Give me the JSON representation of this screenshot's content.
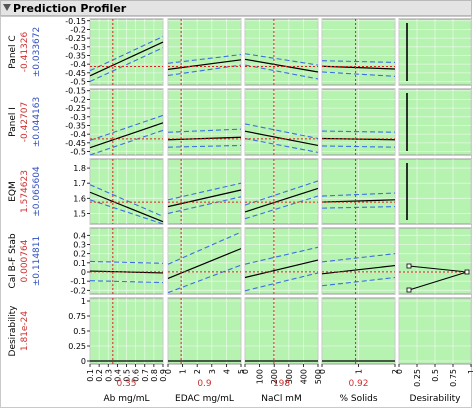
{
  "window": {
    "title": "Prediction Profiler"
  },
  "colors": {
    "panel_bg": "#b6f2b0",
    "grid_line": "#ffffff",
    "fit_line": "#000000",
    "ci_line": "#3b6fe0",
    "crosshair": "#e02020",
    "value_red": "#d03030",
    "value_blue": "#3050c0",
    "xlabel": "#000000"
  },
  "chart_data": {
    "type": "line",
    "factors": [
      {
        "name": "Ab mg/mL",
        "current": "0.35",
        "current_x": 0.35,
        "range": [
          0.1,
          0.9
        ],
        "ticks": [
          0.1,
          0.2,
          0.3,
          0.4,
          0.5,
          0.6,
          0.7,
          0.8,
          0.9
        ],
        "tick_labels": [
          "0.1",
          "0.2",
          "0.3",
          "0.4",
          "0.5",
          "0.6",
          "0.7",
          "0.8",
          "0.9"
        ]
      },
      {
        "name": "EDAC mg/mL",
        "current": "0.9",
        "current_x": 0.9,
        "range": [
          0,
          5
        ],
        "ticks": [
          0,
          1,
          2,
          3,
          4,
          5
        ],
        "tick_labels": [
          "0",
          "1",
          "2",
          "3",
          "4",
          "5"
        ]
      },
      {
        "name": "NaCl mM",
        "current": "198",
        "current_x": 198,
        "range": [
          0,
          500
        ],
        "ticks": [
          0,
          100,
          200,
          300,
          400,
          500
        ],
        "tick_labels": [
          "0",
          "100",
          "200",
          "300",
          "400",
          "500"
        ]
      },
      {
        "name": "% Solids",
        "current": "0.92",
        "current_x": 0.92,
        "range": [
          0,
          2
        ],
        "ticks": [
          0,
          1,
          2
        ],
        "tick_labels": [
          "0",
          "1",
          "2"
        ]
      },
      {
        "name": "Desirability",
        "current": "",
        "range": [
          0,
          1
        ],
        "ticks": [
          0,
          0.25,
          0.5,
          0.75,
          1
        ],
        "tick_labels": [
          "0",
          "0.25",
          "0.5",
          "0.75",
          "1"
        ]
      }
    ],
    "responses": [
      {
        "name": "Panel C",
        "value": "-0.41326",
        "ci": "±0.033672",
        "ylim": [
          -0.52,
          -0.14
        ],
        "current_y": -0.41326,
        "ticks": [
          -0.15,
          -0.2,
          -0.25,
          -0.3,
          -0.35,
          -0.4,
          -0.45,
          -0.5
        ],
        "tick_labels": [
          "-0.15",
          "-0.2",
          "-0.25",
          "-0.3",
          "-0.35",
          "-0.4",
          "-0.45",
          "-0.5"
        ],
        "traces": [
          {
            "fit": [
              -0.467,
              -0.273
            ],
            "lo": [
              -0.5,
              -0.305
            ],
            "hi": [
              -0.437,
              -0.241
            ]
          },
          {
            "fit": [
              -0.43,
              -0.375
            ],
            "lo": [
              -0.465,
              -0.405
            ],
            "hi": [
              -0.395,
              -0.345
            ]
          },
          {
            "fit": [
              -0.372,
              -0.445
            ],
            "lo": [
              -0.405,
              -0.485
            ],
            "hi": [
              -0.34,
              -0.405
            ]
          },
          {
            "fit": [
              -0.412,
              -0.428
            ],
            "lo": [
              -0.445,
              -0.47
            ],
            "hi": [
              -0.38,
              -0.39
            ]
          }
        ],
        "desirability": {
          "type": "vline"
        }
      },
      {
        "name": "Panel I",
        "value": "-0.42707",
        "ci": "±0.044163",
        "ylim": [
          -0.52,
          -0.14
        ],
        "current_y": -0.42707,
        "ticks": [
          -0.15,
          -0.2,
          -0.25,
          -0.3,
          -0.35,
          -0.4,
          -0.45,
          -0.5
        ],
        "tick_labels": [
          "-0.15",
          "-0.2",
          "-0.25",
          "-0.3",
          "-0.35",
          "-0.4",
          "-0.45",
          "-0.5"
        ],
        "traces": [
          {
            "fit": [
              -0.478,
              -0.335
            ],
            "lo": [
              -0.52,
              -0.378
            ],
            "hi": [
              -0.436,
              -0.292
            ]
          },
          {
            "fit": [
              -0.432,
              -0.418
            ],
            "lo": [
              -0.475,
              -0.465
            ],
            "hi": [
              -0.389,
              -0.371
            ]
          },
          {
            "fit": [
              -0.383,
              -0.465
            ],
            "lo": [
              -0.425,
              -0.505
            ],
            "hi": [
              -0.341,
              -0.425
            ]
          },
          {
            "fit": [
              -0.425,
              -0.432
            ],
            "lo": [
              -0.468,
              -0.475
            ],
            "hi": [
              -0.382,
              -0.389
            ]
          }
        ],
        "desirability": {
          "type": "vline"
        }
      },
      {
        "name": "EQM",
        "value": "1.574623",
        "ci": "±0.065604",
        "ylim": [
          1.43,
          1.86
        ],
        "current_y": 1.5746,
        "ticks": [
          1.5,
          1.6,
          1.7,
          1.8
        ],
        "tick_labels": [
          "1.5",
          "1.6",
          "1.7",
          "1.8"
        ],
        "traces": [
          {
            "fit": [
              1.64,
              1.445
            ],
            "lo": [
              1.59,
              1.43
            ],
            "hi": [
              1.69,
              1.48
            ]
          },
          {
            "fit": [
              1.545,
              1.655
            ],
            "lo": [
              1.5,
              1.61
            ],
            "hi": [
              1.59,
              1.7
            ]
          },
          {
            "fit": [
              1.51,
              1.665
            ],
            "lo": [
              1.465,
              1.615
            ],
            "hi": [
              1.555,
              1.715
            ]
          },
          {
            "fit": [
              1.575,
              1.59
            ],
            "lo": [
              1.535,
              1.545
            ],
            "hi": [
              1.615,
              1.635
            ]
          }
        ],
        "desirability": {
          "type": "vline"
        }
      },
      {
        "name": "Cal B-F Stab",
        "value": "0.000764",
        "ci": "±0.114811",
        "ylim": [
          -0.24,
          0.48
        ],
        "current_y": 0.0008,
        "ticks": [
          -0.2,
          -0.1,
          0,
          0.1,
          0.2,
          0.3,
          0.4
        ],
        "tick_labels": [
          "-0.2",
          "-0.1",
          "0",
          "0.1",
          "0.2",
          "0.3",
          "0.4"
        ],
        "traces": [
          {
            "fit": [
              0.01,
              -0.01
            ],
            "lo": [
              -0.095,
              -0.115
            ],
            "hi": [
              0.115,
              0.095
            ]
          },
          {
            "fit": [
              -0.07,
              0.255
            ],
            "lo": [
              -0.225,
              0.075
            ],
            "hi": [
              0.085,
              0.435
            ]
          },
          {
            "fit": [
              -0.06,
              0.13
            ],
            "lo": [
              -0.205,
              -0.01
            ],
            "hi": [
              0.085,
              0.27
            ]
          },
          {
            "fit": [
              -0.02,
              0.07
            ],
            "lo": [
              -0.15,
              -0.06
            ],
            "hi": [
              0.11,
              0.2
            ]
          }
        ],
        "desirability": {
          "type": "triangle"
        }
      },
      {
        "name": "Desirability",
        "value": "1.81e-24",
        "ci": "",
        "ylim": [
          -0.05,
          1.05
        ],
        "current_y": 0,
        "ticks": [
          0,
          0.25,
          0.5,
          0.75,
          1
        ],
        "tick_labels": [
          "0",
          "0.25",
          "0.5",
          "0.75",
          "1"
        ],
        "traces": [
          {
            "fit": [
              0,
              0
            ]
          },
          {
            "fit": [
              0,
              0
            ]
          },
          {
            "fit": [
              0,
              0
            ]
          },
          {
            "fit": [
              0,
              0
            ]
          }
        ],
        "desirability": {
          "type": "none"
        }
      }
    ]
  }
}
